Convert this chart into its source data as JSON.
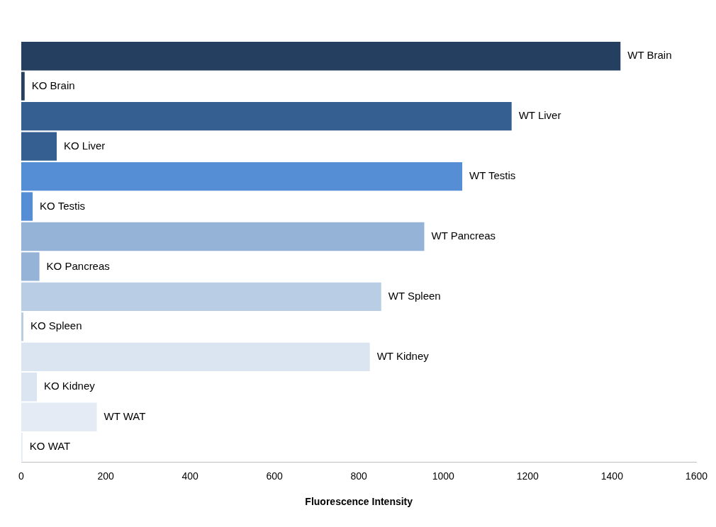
{
  "chart_data": {
    "type": "bar",
    "orientation": "horizontal",
    "xlabel": "Fluorescence Intensity",
    "categories": [
      "WT Brain",
      "KO Brain",
      "WT Liver",
      "KO Liver",
      "WT Testis",
      "KO Testis",
      "WT Pancreas",
      "KO Pancreas",
      "WT Spleen",
      "KO Spleen",
      "WT Kidney",
      "KO Kidney",
      "WT WAT",
      "KO WAT"
    ],
    "values": [
      1420,
      8,
      1162,
      84,
      1045,
      27,
      955,
      43,
      853,
      5,
      826,
      37,
      179,
      3
    ],
    "colors": [
      "#243f60",
      "#243f60",
      "#365f91",
      "#365f91",
      "#558ed5",
      "#558ed5",
      "#95b3d7",
      "#95b3d7",
      "#b9cde5",
      "#b9cde5",
      "#dbe5f1",
      "#dbe5f1",
      "#e4ebf5",
      "#e4ebf5"
    ],
    "xlim": [
      0,
      1600
    ],
    "xticks": [
      0,
      200,
      400,
      600,
      800,
      1000,
      1200,
      1400,
      1600
    ],
    "grid": false,
    "legend": false,
    "tick_labels": "x"
  }
}
